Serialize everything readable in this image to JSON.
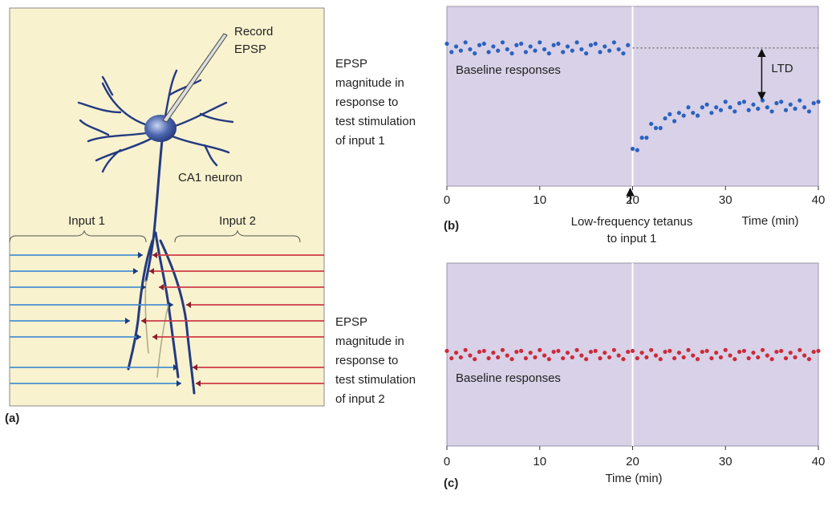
{
  "panel_a": {
    "label": "(a)",
    "electrode_label": [
      "Record",
      "EPSP"
    ],
    "neuron_label": "CA1 neuron",
    "input_labels": [
      "Input 1",
      "Input 2"
    ]
  },
  "side_labels": [
    [
      "EPSP",
      "magnitude in",
      "response to",
      "test stimulation",
      "of input 1"
    ],
    [
      "EPSP",
      "magnitude in",
      "response to",
      "test stimulation",
      "of input 2"
    ]
  ],
  "chart_data": [
    {
      "type": "scatter",
      "panel_label": "(b)",
      "xlabel": "Time (min)",
      "xlim": [
        0,
        40
      ],
      "xticks": [
        0,
        10,
        20,
        30,
        40
      ],
      "ylim": [
        0,
        130
      ],
      "stimulus_x": 20,
      "reference_y": 100,
      "annotation": "Baseline responses",
      "stimulus_label": [
        "Low-frequency tetanus",
        "to input 1"
      ],
      "ltd": {
        "label": "LTD",
        "from": 100,
        "to": 58
      },
      "series": [
        {
          "color": "#2a62c0",
          "x": [
            0,
            0.5,
            1,
            1.5,
            2,
            2.5,
            3,
            3.5,
            4,
            4.5,
            5,
            5.5,
            6,
            6.5,
            7,
            7.5,
            8,
            8.5,
            9,
            9.5,
            10,
            10.5,
            11,
            11.5,
            12,
            12.5,
            13,
            13.5,
            14,
            14.5,
            15,
            15.5,
            16,
            16.5,
            17,
            17.5,
            18,
            18.5,
            19,
            19.5
          ],
          "values": [
            103,
            97,
            101,
            98,
            104,
            99,
            96,
            102,
            103,
            97,
            101,
            98,
            104,
            99,
            96,
            102,
            103,
            97,
            101,
            98,
            104,
            99,
            96,
            102,
            103,
            97,
            101,
            98,
            104,
            99,
            96,
            102,
            103,
            97,
            101,
            98,
            104,
            99,
            96,
            102
          ]
        },
        {
          "color": "#2a62c0",
          "x": [
            20,
            20.5,
            21,
            21.5,
            22,
            22.5,
            23,
            23.5,
            24,
            24.5,
            25,
            25.5,
            26,
            26.5,
            27,
            27.5,
            28,
            28.5,
            29,
            29.5,
            30,
            30.5,
            31,
            31.5,
            32,
            32.5,
            33,
            33.5,
            34,
            34.5,
            35,
            35.5,
            36,
            36.5,
            37,
            37.5,
            38,
            38.5,
            39,
            39.5,
            40
          ],
          "values": [
            27,
            26,
            35,
            35,
            45,
            42,
            42,
            49,
            52,
            47,
            53,
            51,
            57,
            53,
            51,
            57,
            59,
            53,
            57,
            55,
            61,
            57,
            54,
            60,
            61,
            55,
            59,
            56,
            62,
            57,
            54,
            60,
            61,
            55,
            59,
            56,
            62,
            57,
            54,
            60,
            61
          ]
        }
      ]
    },
    {
      "type": "scatter",
      "panel_label": "(c)",
      "xlabel": "Time (min)",
      "xlim": [
        0,
        40
      ],
      "xticks": [
        0,
        10,
        20,
        30,
        40
      ],
      "ylim": [
        0,
        200
      ],
      "stimulus_x": 20,
      "annotation": "Baseline responses",
      "series": [
        {
          "color": "#cc2b3a",
          "x": [
            0,
            0.5,
            1,
            1.5,
            2,
            2.5,
            3,
            3.5,
            4,
            4.5,
            5,
            5.5,
            6,
            6.5,
            7,
            7.5,
            8,
            8.5,
            9,
            9.5,
            10,
            10.5,
            11,
            11.5,
            12,
            12.5,
            13,
            13.5,
            14,
            14.5,
            15,
            15.5,
            16,
            16.5,
            17,
            17.5,
            18,
            18.5,
            19,
            19.5,
            20,
            20.5,
            21,
            21.5,
            22,
            22.5,
            23,
            23.5,
            24,
            24.5,
            25,
            25.5,
            26,
            26.5,
            27,
            27.5,
            28,
            28.5,
            29,
            29.5,
            30,
            30.5,
            31,
            31.5,
            32,
            32.5,
            33,
            33.5,
            34,
            34.5,
            35,
            35.5,
            36,
            36.5,
            37,
            37.5,
            38,
            38.5,
            39,
            39.5,
            40
          ],
          "values": [
            104,
            96,
            102,
            97,
            105,
            99,
            95,
            103,
            104,
            96,
            102,
            97,
            105,
            99,
            95,
            103,
            104,
            96,
            102,
            97,
            105,
            99,
            95,
            103,
            104,
            96,
            102,
            97,
            105,
            99,
            95,
            103,
            104,
            96,
            102,
            97,
            105,
            99,
            95,
            103,
            104,
            96,
            102,
            97,
            105,
            99,
            95,
            103,
            104,
            96,
            102,
            97,
            105,
            99,
            95,
            103,
            104,
            96,
            102,
            97,
            105,
            99,
            95,
            103,
            104,
            96,
            102,
            97,
            105,
            99,
            95,
            103,
            104,
            96,
            102,
            97,
            105,
            99,
            95,
            103,
            104
          ]
        }
      ]
    }
  ]
}
